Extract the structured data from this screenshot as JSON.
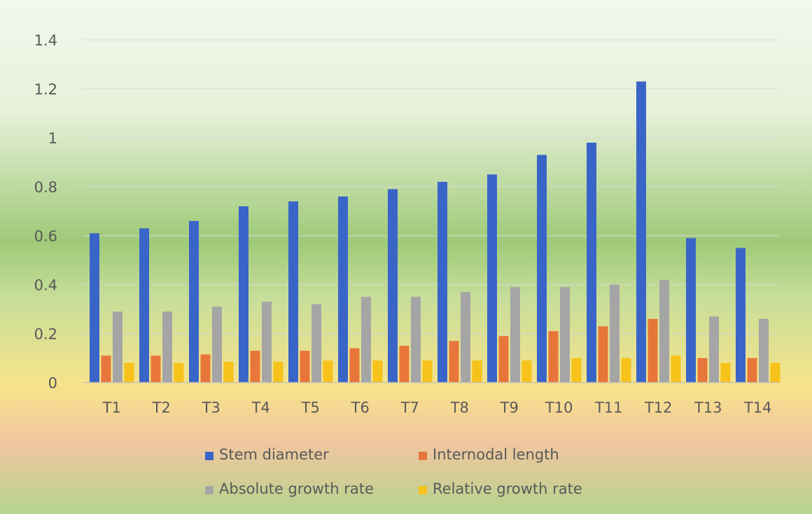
{
  "chart_data": {
    "type": "bar",
    "title": "",
    "xlabel": "",
    "ylabel": "",
    "ylim": [
      0,
      1.4
    ],
    "yticks": [
      "0",
      "0.2",
      "0.4",
      "0.6",
      "0.8",
      "1",
      "1.2",
      "1.4"
    ],
    "grid": true,
    "legend_position": "bottom",
    "categories": [
      "T1",
      "T2",
      "T3",
      "T4",
      "T5",
      "T6",
      "T7",
      "T8",
      "T9",
      "T10",
      "T11",
      "T12",
      "T13",
      "T14"
    ],
    "series": [
      {
        "name": "Stem diameter",
        "color": "#3A65C8",
        "values": [
          0.61,
          0.63,
          0.66,
          0.72,
          0.74,
          0.76,
          0.79,
          0.82,
          0.85,
          0.93,
          0.98,
          1.23,
          0.59,
          0.55
        ]
      },
      {
        "name": "Internodal length",
        "color": "#E8763A",
        "values": [
          0.11,
          0.11,
          0.115,
          0.13,
          0.13,
          0.14,
          0.15,
          0.17,
          0.19,
          0.21,
          0.23,
          0.26,
          0.1,
          0.1
        ]
      },
      {
        "name": "Absolute growth rate",
        "color": "#A5A5A5",
        "values": [
          0.29,
          0.29,
          0.31,
          0.33,
          0.32,
          0.35,
          0.35,
          0.37,
          0.39,
          0.39,
          0.4,
          0.42,
          0.27,
          0.26
        ]
      },
      {
        "name": "Relative growth rate",
        "color": "#F7C21A",
        "values": [
          0.08,
          0.08,
          0.085,
          0.085,
          0.09,
          0.09,
          0.09,
          0.09,
          0.09,
          0.1,
          0.1,
          0.11,
          0.08,
          0.08
        ]
      }
    ]
  }
}
